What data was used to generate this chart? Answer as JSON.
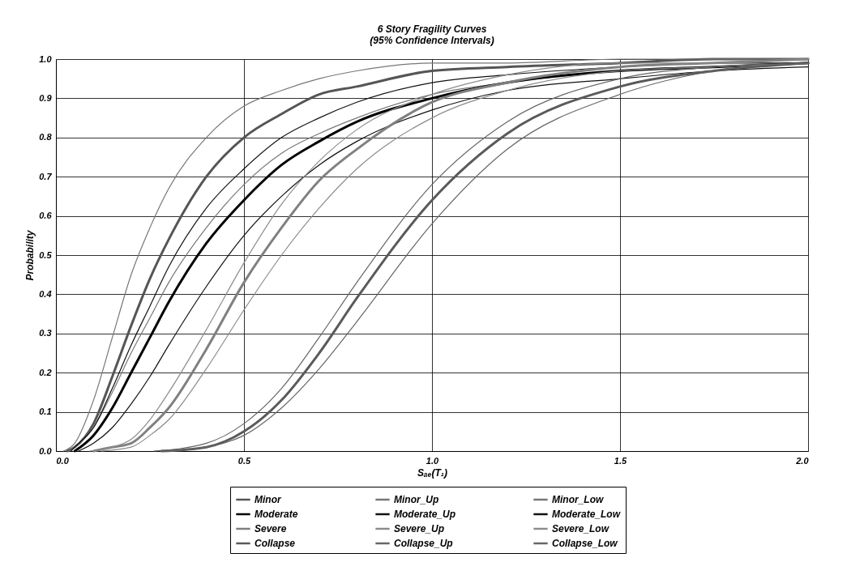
{
  "chart_data": {
    "type": "line",
    "title": "6 Story Fragility Curves",
    "subtitle": "(95% Confidence Intervals)",
    "xlabel": "Sₐₑ(T₁)",
    "ylabel": "Probability",
    "series": [
      {
        "name": "Minor",
        "color": "#555555",
        "x": [
          0.03,
          0.05,
          0.1,
          0.15,
          0.2,
          0.25,
          0.3,
          0.4,
          0.5,
          0.6,
          0.7,
          0.8,
          1.0,
          1.2,
          1.5,
          1.75,
          2.0
        ],
        "values": [
          0,
          0.01,
          0.07,
          0.19,
          0.32,
          0.44,
          0.54,
          0.7,
          0.8,
          0.86,
          0.91,
          0.93,
          0.97,
          0.98,
          0.99,
          1.0,
          1.0
        ]
      },
      {
        "name": "Minor_Up",
        "color": "#777777",
        "x": [
          0.02,
          0.05,
          0.1,
          0.15,
          0.2,
          0.25,
          0.3,
          0.4,
          0.5,
          0.6,
          0.7,
          0.8,
          1.0,
          1.2,
          1.5,
          1.75,
          2.0
        ],
        "values": [
          0,
          0.02,
          0.13,
          0.29,
          0.45,
          0.57,
          0.67,
          0.8,
          0.88,
          0.92,
          0.95,
          0.97,
          0.99,
          0.99,
          1.0,
          1.0,
          1.0
        ]
      },
      {
        "name": "Minor_Low",
        "color": "#777777",
        "x": [
          0.035,
          0.05,
          0.1,
          0.15,
          0.2,
          0.25,
          0.3,
          0.4,
          0.5,
          0.6,
          0.7,
          0.8,
          1.0,
          1.2,
          1.5,
          1.75,
          2.0
        ],
        "values": [
          0,
          0.01,
          0.06,
          0.15,
          0.25,
          0.34,
          0.43,
          0.57,
          0.68,
          0.76,
          0.81,
          0.85,
          0.91,
          0.94,
          0.97,
          0.98,
          0.99
        ]
      },
      {
        "name": "Moderate",
        "color": "#000000",
        "x": [
          0.05,
          0.1,
          0.15,
          0.2,
          0.25,
          0.3,
          0.4,
          0.5,
          0.6,
          0.7,
          0.8,
          1.0,
          1.2,
          1.5,
          1.75,
          2.0
        ],
        "values": [
          0.0,
          0.04,
          0.11,
          0.2,
          0.29,
          0.38,
          0.53,
          0.64,
          0.73,
          0.79,
          0.84,
          0.9,
          0.94,
          0.97,
          0.98,
          0.99
        ]
      },
      {
        "name": "Moderate_Up",
        "color": "#111111",
        "x": [
          0.04,
          0.05,
          0.1,
          0.15,
          0.2,
          0.25,
          0.3,
          0.4,
          0.5,
          0.6,
          0.7,
          0.8,
          1.0,
          1.2,
          1.5,
          1.75,
          2.0
        ],
        "values": [
          0,
          0.01,
          0.06,
          0.16,
          0.27,
          0.37,
          0.47,
          0.62,
          0.72,
          0.8,
          0.85,
          0.89,
          0.94,
          0.96,
          0.98,
          0.99,
          0.99
        ]
      },
      {
        "name": "Moderate_Low",
        "color": "#111111",
        "x": [
          0.06,
          0.1,
          0.15,
          0.2,
          0.25,
          0.3,
          0.4,
          0.5,
          0.6,
          0.7,
          0.8,
          1.0,
          1.2,
          1.5,
          1.75,
          2.0
        ],
        "values": [
          0.0,
          0.02,
          0.06,
          0.12,
          0.19,
          0.27,
          0.42,
          0.55,
          0.65,
          0.73,
          0.79,
          0.87,
          0.92,
          0.95,
          0.97,
          0.98
        ]
      },
      {
        "name": "Severe",
        "color": "#808080",
        "x": [
          0.1,
          0.15,
          0.2,
          0.25,
          0.3,
          0.4,
          0.5,
          0.6,
          0.7,
          0.8,
          1.0,
          1.2,
          1.5,
          1.75,
          2.0
        ],
        "values": [
          0.0,
          0.01,
          0.02,
          0.06,
          0.11,
          0.26,
          0.43,
          0.57,
          0.69,
          0.77,
          0.89,
          0.94,
          0.98,
          0.99,
          1.0
        ]
      },
      {
        "name": "Severe_Up",
        "color": "#8c8c8c",
        "x": [
          0.09,
          0.15,
          0.2,
          0.25,
          0.3,
          0.4,
          0.5,
          0.6,
          0.7,
          0.8,
          1.0,
          1.2,
          1.5,
          1.75,
          2.0
        ],
        "values": [
          0.0,
          0.01,
          0.03,
          0.08,
          0.15,
          0.31,
          0.48,
          0.63,
          0.74,
          0.82,
          0.91,
          0.96,
          0.99,
          0.99,
          1.0
        ]
      },
      {
        "name": "Severe_Low",
        "color": "#8c8c8c",
        "x": [
          0.12,
          0.2,
          0.25,
          0.3,
          0.4,
          0.5,
          0.6,
          0.7,
          0.8,
          1.0,
          1.2,
          1.5,
          1.75,
          2.0
        ],
        "values": [
          0.0,
          0.01,
          0.04,
          0.08,
          0.21,
          0.36,
          0.5,
          0.62,
          0.72,
          0.85,
          0.92,
          0.97,
          0.98,
          0.99
        ]
      },
      {
        "name": "Collapse",
        "color": "#5a5a5a",
        "x": [
          0.28,
          0.4,
          0.5,
          0.6,
          0.7,
          0.8,
          1.0,
          1.2,
          1.5,
          1.75,
          2.0
        ],
        "values": [
          0.0,
          0.01,
          0.05,
          0.13,
          0.25,
          0.39,
          0.64,
          0.81,
          0.93,
          0.97,
          0.99
        ]
      },
      {
        "name": "Collapse_Up",
        "color": "#666666",
        "x": [
          0.26,
          0.4,
          0.5,
          0.6,
          0.7,
          0.8,
          1.0,
          1.2,
          1.5,
          1.75,
          2.0
        ],
        "values": [
          0.0,
          0.02,
          0.07,
          0.16,
          0.29,
          0.43,
          0.68,
          0.84,
          0.95,
          0.98,
          0.99
        ]
      },
      {
        "name": "Collapse_Low",
        "color": "#666666",
        "x": [
          0.3,
          0.4,
          0.5,
          0.6,
          0.7,
          0.8,
          1.0,
          1.2,
          1.5,
          1.75,
          2.0
        ],
        "values": [
          0.0,
          0.01,
          0.04,
          0.11,
          0.21,
          0.33,
          0.58,
          0.77,
          0.91,
          0.97,
          0.99
        ]
      }
    ],
    "xlim": [
      0,
      2
    ],
    "ylim": [
      0,
      1
    ],
    "xticks": [
      {
        "value": 0,
        "label": "0.0"
      },
      0.5,
      {
        "value": 1,
        "label": "1.0"
      },
      1.5,
      {
        "value": 2,
        "label": "2.0"
      }
    ],
    "yticks": [
      {
        "value": 0,
        "label": "0.0"
      },
      0.1,
      0.2,
      0.3,
      0.4,
      0.5,
      0.6,
      0.7,
      0.8,
      0.9,
      {
        "value": 1,
        "label": "1.0"
      }
    ],
    "grid": true,
    "legend": "bottom"
  }
}
